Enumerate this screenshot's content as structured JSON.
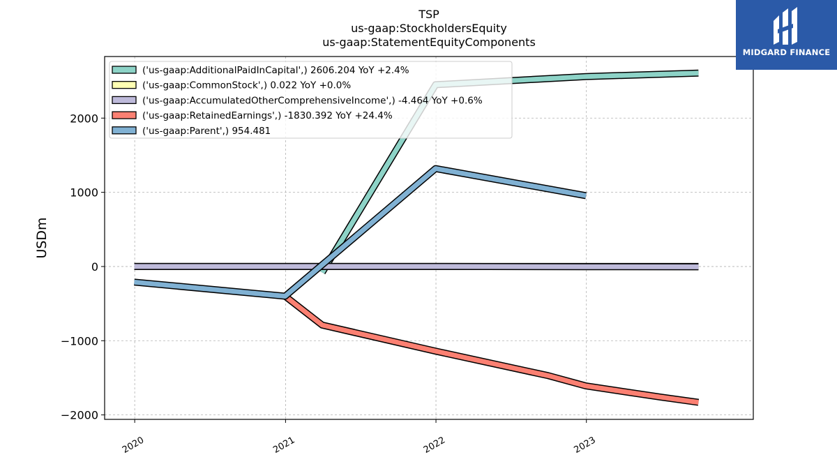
{
  "chart_data": {
    "type": "line",
    "title_lines": [
      "TSP",
      "us-gaap:StockholdersEquity",
      "us-gaap:StatementEquityComponents"
    ],
    "ylabel": "USDm",
    "xlabel": "",
    "xlim": [
      "2019-10-20",
      "2024-02-10"
    ],
    "ylim": [
      -2060,
      2830
    ],
    "x_ticks": [
      "2020",
      "2021",
      "2022",
      "2023"
    ],
    "y_ticks": [
      -2000,
      -1000,
      0,
      1000,
      2000
    ],
    "y_tick_labels": [
      "−2000",
      "−1000",
      "0",
      "1000",
      "2000"
    ],
    "grid": true,
    "legend_position": "upper-left",
    "series": [
      {
        "name": "('us-gaap:AdditionalPaidInCapital',) 2606.204 YoY +2.4%",
        "color": "#8dd3c7",
        "points": [
          [
            "2021-03-31",
            -80
          ],
          [
            "2021-12-31",
            2450
          ],
          [
            "2022-12-31",
            2560
          ],
          [
            "2023-09-30",
            2606.204
          ]
        ]
      },
      {
        "name": "('us-gaap:CommonStock',) 0.022 YoY +0.0%",
        "color": "#ffffb3",
        "points": [
          [
            "2019-12-31",
            0.022
          ],
          [
            "2023-09-30",
            0.022
          ]
        ]
      },
      {
        "name": "('us-gaap:AccumulatedOtherComprehensiveIncome',) -4.464 YoY +0.6%",
        "color": "#bebada",
        "points": [
          [
            "2019-12-31",
            0
          ],
          [
            "2020-12-31",
            0
          ],
          [
            "2021-12-31",
            0
          ],
          [
            "2022-12-31",
            -2
          ],
          [
            "2023-09-30",
            -4.464
          ]
        ]
      },
      {
        "name": "('us-gaap:RetainedEarnings',) -1830.392 YoY +24.4%",
        "color": "#fb8072",
        "points": [
          [
            "2020-12-31",
            -400
          ],
          [
            "2021-03-31",
            -790
          ],
          [
            "2021-12-31",
            -1140
          ],
          [
            "2022-09-30",
            -1470
          ],
          [
            "2022-12-31",
            -1610
          ],
          [
            "2023-06-30",
            -1760
          ],
          [
            "2023-09-30",
            -1830.392
          ]
        ]
      },
      {
        "name": "('us-gaap:Parent',) 954.481",
        "color": "#80b1d3",
        "points": [
          [
            "2019-12-31",
            -210
          ],
          [
            "2020-12-31",
            -400
          ],
          [
            "2021-12-31",
            1320
          ],
          [
            "2022-12-31",
            954.481
          ]
        ]
      }
    ]
  },
  "logo": {
    "text": "MIDGARD FINANCE"
  }
}
